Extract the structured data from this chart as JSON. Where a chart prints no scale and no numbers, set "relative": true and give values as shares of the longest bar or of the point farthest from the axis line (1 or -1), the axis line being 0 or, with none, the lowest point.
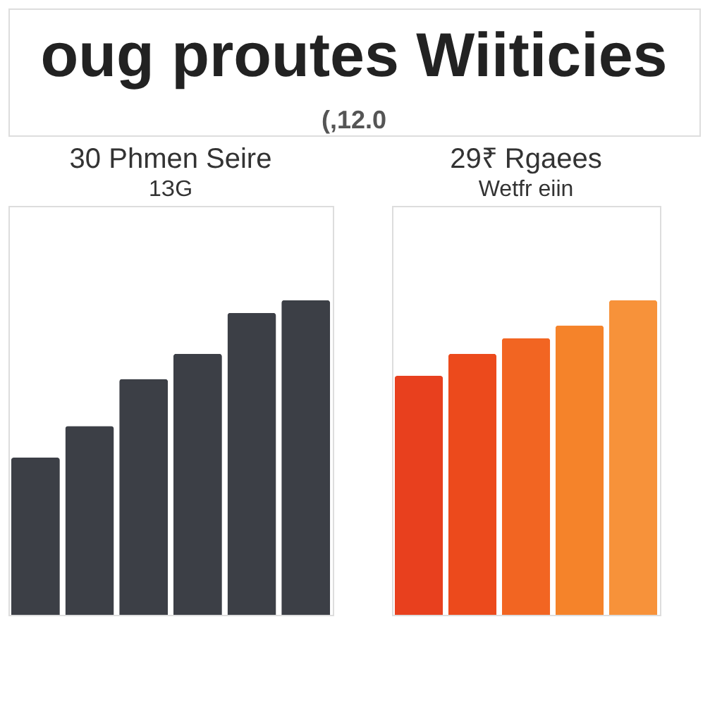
{
  "chart_data": [
    {
      "type": "other",
      "title": "oug proutes Wiiticies",
      "annotations": [
        "(,12.0"
      ]
    },
    {
      "type": "bar",
      "title": "30 Phmen Seire",
      "subtitle": "1ЗG",
      "categories": [
        null,
        null,
        null,
        null,
        null,
        null
      ],
      "values": [
        0.5,
        0.6,
        0.75,
        0.83,
        0.96,
        1
      ],
      "color": "#3c3f46",
      "relative": true
    },
    {
      "type": "bar",
      "title": "29₹ Rgaees",
      "subtitle": "Wetfr eiin",
      "categories": [
        null,
        null,
        null,
        null,
        null
      ],
      "values": [
        0.76,
        0.83,
        0.88,
        0.92,
        1
      ],
      "colors": [
        "#e8401e",
        "#ec4a1c",
        "#f26522",
        "#f5832a",
        "#f7923a"
      ],
      "relative": true
    }
  ]
}
